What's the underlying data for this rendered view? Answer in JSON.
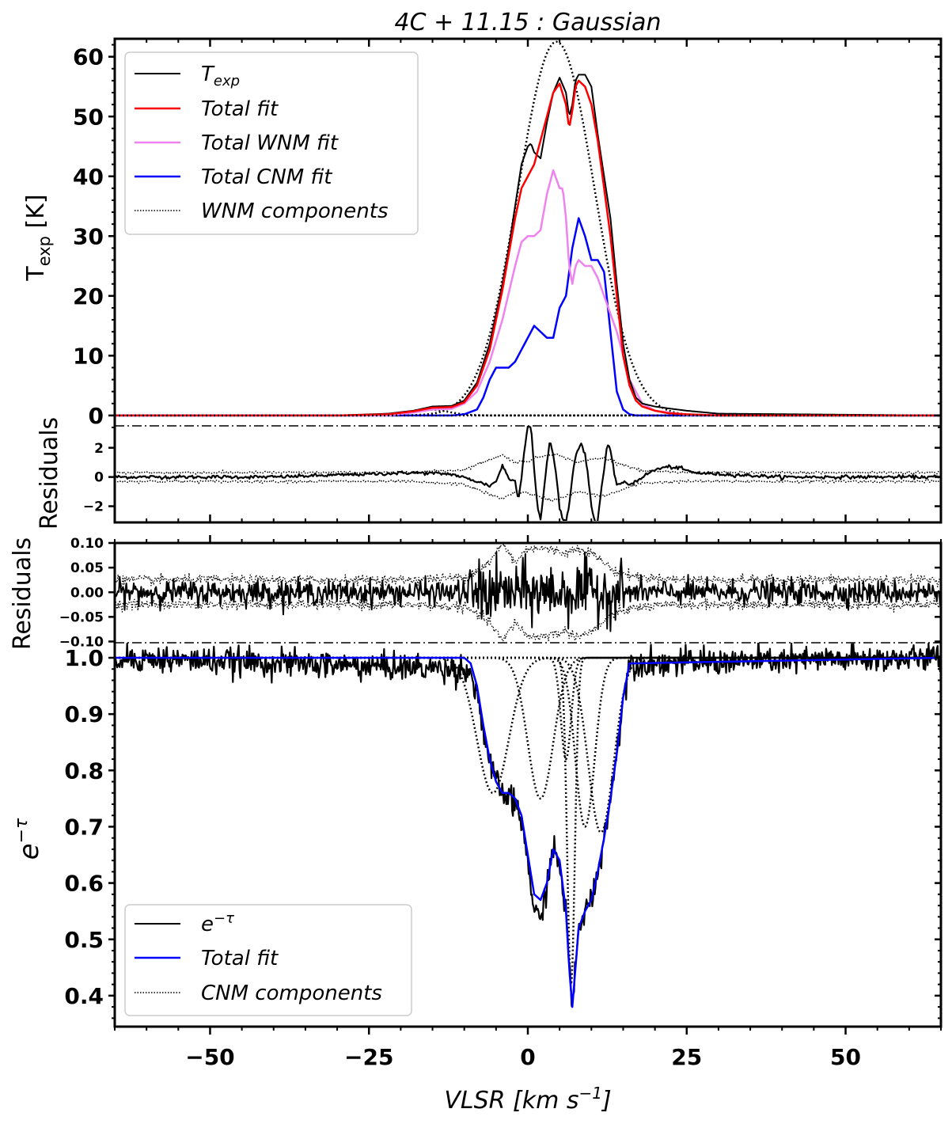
{
  "title": "4C + 11.15 : Gaussian",
  "colors": {
    "data": "#000000",
    "total_fit": "#ff0000",
    "wnm_fit": "#ee82ee",
    "cnm_fit": "#0000ff"
  },
  "chart_data": [
    {
      "id": "emission",
      "type": "line",
      "ylabel": "T_exp [K]",
      "xlim": [
        -65,
        65
      ],
      "ylim": [
        -2,
        63
      ],
      "yticks": [
        0,
        10,
        20,
        30,
        40,
        50,
        60
      ],
      "legend": {
        "placement": "top-left",
        "entries": [
          "T_exp",
          "Total fit",
          "Total WNM fit",
          "Total CNM fit",
          "WNM components"
        ]
      },
      "wnm_components": [
        {
          "amp": 1.0,
          "center": -15.5,
          "sigma": 3.0
        },
        {
          "amp": 62.5,
          "center": 4.5,
          "sigma": 6.0
        }
      ],
      "series": [
        {
          "name": "T_exp",
          "color": "#000000",
          "x": [
            -65,
            -30,
            -22,
            -18,
            -15,
            -12,
            -10,
            -8,
            -6,
            -4,
            -3,
            -2,
            -1,
            0,
            0.5,
            1,
            2,
            3,
            4,
            5,
            6,
            6.5,
            7,
            7.5,
            8,
            9,
            10,
            11,
            12,
            13,
            14,
            15,
            16,
            17,
            18,
            20,
            22,
            25,
            30,
            65
          ],
          "y": [
            0,
            0,
            0.3,
            0.8,
            1.5,
            1.6,
            2.5,
            5.5,
            12,
            22,
            28,
            35,
            42,
            45,
            45.5,
            44,
            43,
            49,
            54,
            56.5,
            54,
            50,
            52,
            56,
            57,
            57,
            55,
            47,
            40,
            33,
            22,
            12,
            6,
            3,
            2,
            1.5,
            1.2,
            0.8,
            0.3,
            0
          ]
        },
        {
          "name": "Total fit",
          "color": "#ff0000",
          "x": [
            -65,
            -30,
            -22,
            -18,
            -15,
            -12,
            -10,
            -8,
            -6,
            -4,
            -3,
            -2,
            -1,
            0,
            1,
            2,
            3,
            4,
            5,
            6,
            6.5,
            7,
            7.5,
            8,
            9,
            10,
            11,
            12,
            13,
            14,
            15,
            16,
            17,
            18,
            20,
            22,
            25,
            30,
            65
          ],
          "y": [
            0,
            0,
            0.2,
            0.7,
            1.3,
            1.4,
            2.2,
            5,
            11,
            21,
            27,
            33,
            38,
            40,
            42,
            46,
            50,
            54,
            55.5,
            52,
            48,
            51,
            55,
            56,
            55,
            52,
            46,
            38,
            30,
            20,
            10,
            5,
            2.5,
            1.5,
            0.8,
            0.4,
            0.2,
            0,
            0
          ]
        },
        {
          "name": "Total WNM fit",
          "color": "#ee82ee",
          "x": [
            -65,
            -22,
            -18,
            -15,
            -12,
            -10,
            -8,
            -6,
            -4,
            -2,
            -1,
            0,
            1,
            2,
            3,
            4,
            5,
            5.5,
            6,
            6.5,
            7,
            7.5,
            8,
            9,
            10,
            11,
            12,
            13,
            14,
            15,
            16,
            18,
            20,
            25,
            65
          ],
          "y": [
            0,
            0,
            0.5,
            1,
            1.1,
            2,
            4,
            9,
            16,
            25,
            29,
            30,
            30,
            31,
            37,
            41,
            38,
            38,
            33,
            25,
            22,
            25,
            26,
            25,
            25,
            23,
            20,
            17,
            14,
            10,
            6,
            2,
            0.8,
            0.1,
            0
          ]
        },
        {
          "name": "Total CNM fit",
          "color": "#0000ff",
          "x": [
            -65,
            -12,
            -10,
            -8,
            -7,
            -6,
            -5,
            -4,
            -3,
            -2,
            -1,
            0,
            1,
            2,
            3,
            4,
            5,
            6,
            7,
            8,
            9,
            10,
            11,
            12,
            13,
            14,
            15,
            16,
            17,
            65
          ],
          "y": [
            0,
            0,
            0.2,
            1,
            3,
            6,
            8,
            8,
            8,
            9,
            11,
            13,
            15,
            14,
            13,
            13,
            18,
            20,
            28,
            33,
            30,
            26,
            26,
            24,
            14,
            4,
            1,
            0.2,
            0,
            0
          ]
        }
      ]
    },
    {
      "id": "emission_residuals",
      "type": "line",
      "ylabel": "Residuals",
      "xlim": [
        -65,
        65
      ],
      "ylim": [
        -3,
        3.5
      ],
      "yticks": [
        -2,
        0,
        2
      ],
      "series": [
        {
          "name": "residual",
          "color": "#000000",
          "x": [
            -65,
            -40,
            -25,
            -18,
            -12,
            -8,
            -6,
            -5,
            -4,
            -3,
            -2,
            -1.5,
            -1,
            -0.5,
            0,
            0.5,
            1,
            1.5,
            2,
            2.5,
            3,
            3.5,
            4,
            4.5,
            5,
            5.5,
            6,
            6.5,
            7,
            7.5,
            8,
            8.5,
            9,
            9.5,
            10,
            10.5,
            11,
            11.5,
            12,
            12.5,
            13,
            13.5,
            14,
            15,
            16,
            17,
            18,
            20,
            22,
            24,
            26,
            30,
            40,
            65
          ],
          "y": [
            0,
            0,
            0.2,
            0.3,
            0.2,
            -0.3,
            -0.6,
            -0.3,
            0.8,
            -0.1,
            -0.3,
            -1.5,
            0,
            2,
            3.5,
            3.5,
            0.5,
            -2,
            -3,
            -1,
            1,
            2.5,
            1.5,
            0,
            -2,
            -3,
            -3,
            -2,
            0,
            1.5,
            2,
            2.3,
            1.5,
            0,
            -2,
            -3,
            -3,
            -1,
            0.5,
            2.2,
            1.8,
            0.5,
            -0.5,
            -0.4,
            -0.5,
            -0.3,
            0,
            0.5,
            0.7,
            0.6,
            0.3,
            0.2,
            0,
            0
          ]
        },
        {
          "name": "upper_envelope",
          "color": "#000000",
          "x": [
            -65,
            -20,
            -10,
            -6,
            -4,
            -2,
            0,
            2,
            4,
            6,
            8,
            10,
            12,
            14,
            18,
            25,
            65
          ],
          "y": [
            0.3,
            0.3,
            0.5,
            1.2,
            1.5,
            1,
            1.1,
            1.4,
            1.6,
            1.3,
            1.0,
            1.2,
            1.3,
            1.0,
            0.4,
            0.3,
            0.3
          ]
        },
        {
          "name": "lower_envelope",
          "color": "#000000",
          "x": [
            -65,
            -20,
            -10,
            -6,
            -4,
            -2,
            0,
            2,
            4,
            6,
            8,
            10,
            12,
            14,
            18,
            25,
            65
          ],
          "y": [
            -0.3,
            -0.3,
            -0.5,
            -1.2,
            -1.5,
            -1,
            -1.1,
            -1.4,
            -1.6,
            -1.3,
            -1.0,
            -1.2,
            -1.3,
            -1.0,
            -0.4,
            -0.3,
            -0.3
          ]
        }
      ]
    },
    {
      "id": "absorption_residuals",
      "type": "line",
      "ylabel": "Residuals",
      "xlim": [
        -65,
        65
      ],
      "ylim": [
        -0.125,
        0.1
      ],
      "yticks": [
        -0.1,
        -0.05,
        0.0,
        0.05,
        0.1
      ],
      "ytick_labels": [
        "−0.10",
        "−0.05",
        "0.00",
        "0.05",
        "0.10"
      ],
      "noise": {
        "base_sigma": 0.012,
        "core_sigma": 0.03,
        "core_range": [
          -10,
          15
        ]
      },
      "series": [
        {
          "name": "upper_envelope",
          "color": "#000000",
          "x": [
            -65,
            -20,
            -10,
            -6,
            -4,
            -2,
            0,
            2,
            4,
            6,
            8,
            10,
            12,
            14,
            18,
            25,
            65
          ],
          "y": [
            0.025,
            0.025,
            0.03,
            0.06,
            0.1,
            0.06,
            0.09,
            0.09,
            0.085,
            0.08,
            0.09,
            0.08,
            0.06,
            0.04,
            0.03,
            0.025,
            0.025
          ]
        },
        {
          "name": "lower_envelope",
          "color": "#000000",
          "x": [
            -65,
            -20,
            -10,
            -6,
            -4,
            -2,
            0,
            2,
            4,
            6,
            8,
            10,
            12,
            14,
            18,
            25,
            65
          ],
          "y": [
            -0.025,
            -0.025,
            -0.03,
            -0.06,
            -0.1,
            -0.06,
            -0.09,
            -0.09,
            -0.085,
            -0.08,
            -0.09,
            -0.08,
            -0.06,
            -0.04,
            -0.03,
            -0.025,
            -0.025
          ]
        }
      ]
    },
    {
      "id": "absorption",
      "type": "line",
      "ylabel": "e^-τ",
      "xlabel": "VLSR [km s^-1]",
      "xlim": [
        -65,
        65
      ],
      "ylim": [
        0.345,
        1.0
      ],
      "yticks": [
        0.4,
        0.5,
        0.6,
        0.7,
        0.8,
        0.9,
        1.0
      ],
      "xticks": [
        -50,
        -25,
        0,
        25,
        50
      ],
      "xtick_labels": [
        "−50",
        "−25",
        "0",
        "25",
        "50"
      ],
      "legend": {
        "placement": "bottom-left",
        "entries": [
          "e^-τ",
          "Total fit",
          "CNM components"
        ]
      },
      "cnm_components": [
        {
          "amp": 0.24,
          "center": -5.5,
          "sigma": 2.5
        },
        {
          "amp": 0.25,
          "center": 2.0,
          "sigma": 2.0
        },
        {
          "amp": 0.18,
          "center": 6.0,
          "sigma": 0.8
        },
        {
          "amp": 0.58,
          "center": 6.8,
          "sigma": 0.6
        },
        {
          "amp": 0.3,
          "center": 9.0,
          "sigma": 1.5
        },
        {
          "amp": 0.31,
          "center": 11.5,
          "sigma": 2.0
        }
      ],
      "series": [
        {
          "name": "Total fit",
          "color": "#0000ff",
          "x": [
            -65,
            -10,
            -9,
            -8,
            -7,
            -6,
            -5,
            -4,
            -3,
            -2,
            -1,
            0,
            1,
            2,
            3,
            4,
            5,
            6,
            6.5,
            7,
            7.5,
            8,
            9,
            10,
            11,
            12,
            13,
            14,
            15,
            16,
            65
          ],
          "y": [
            1,
            1,
            0.99,
            0.95,
            0.88,
            0.82,
            0.78,
            0.76,
            0.76,
            0.75,
            0.72,
            0.65,
            0.58,
            0.57,
            0.6,
            0.66,
            0.64,
            0.55,
            0.45,
            0.38,
            0.45,
            0.52,
            0.55,
            0.57,
            0.62,
            0.68,
            0.75,
            0.83,
            0.93,
            0.99,
            1
          ]
        },
        {
          "name": "e^-τ",
          "color": "#000000",
          "noise_sigma": 0.012,
          "x": [
            -65,
            -10,
            -9,
            -8,
            -7,
            -6,
            -5,
            -4,
            -3,
            -2,
            -1,
            0,
            1,
            2,
            3,
            4,
            5,
            6,
            6.5,
            7,
            7.5,
            8,
            9,
            10,
            11,
            12,
            13,
            14,
            15,
            16,
            65
          ],
          "y": [
            1,
            0.98,
            0.97,
            0.94,
            0.87,
            0.81,
            0.78,
            0.76,
            0.75,
            0.74,
            0.71,
            0.64,
            0.55,
            0.53,
            0.6,
            0.66,
            0.63,
            0.55,
            0.45,
            0.38,
            0.45,
            0.52,
            0.55,
            0.57,
            0.62,
            0.68,
            0.75,
            0.83,
            0.93,
            0.99,
            1
          ]
        }
      ]
    }
  ],
  "legend_labels": {
    "t_exp": "T",
    "t_exp_sub": "exp",
    "total_fit": "Total fit",
    "total_wnm_fit": "Total WNM fit",
    "total_cnm_fit": "Total CNM fit",
    "wnm_components": "WNM components",
    "etau": "e",
    "etau_sup": "−τ",
    "abs_total_fit": "Total fit",
    "cnm_components": "CNM components"
  },
  "axis_labels": {
    "top_y_main": "T",
    "top_y_sub": "exp",
    "top_y_unit": " [K]",
    "res1_y": "Residuals",
    "res2_y": "Residuals",
    "abs_y_main": "e",
    "abs_y_sup": "−τ",
    "x_main": "VLSR [",
    "x_km": "km s",
    "x_sup": "−1",
    "x_close": "]"
  },
  "top_ytick_labels": [
    "0",
    "10",
    "20",
    "30",
    "40",
    "50",
    "60"
  ],
  "res1_ytick_labels": [
    "−2",
    "0",
    "2"
  ],
  "abs_ytick_labels": [
    "0.4",
    "0.5",
    "0.6",
    "0.7",
    "0.8",
    "0.9",
    "1.0"
  ]
}
